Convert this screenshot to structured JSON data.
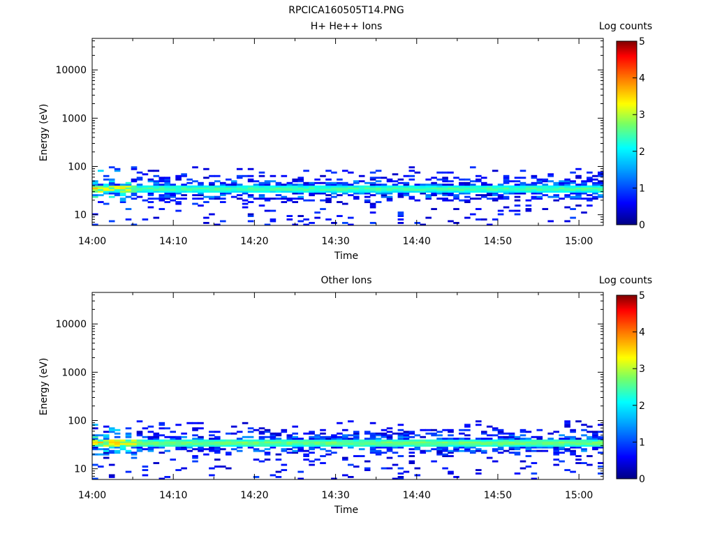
{
  "figure_title": "RPCICA160505T14.PNG",
  "chart_data": [
    {
      "type": "heatmap",
      "title": "H+ He++ Ions",
      "xlabel": "Time",
      "ylabel": "Energy (eV)",
      "x_range": [
        "14:00",
        "15:03"
      ],
      "x_ticks": [
        "14:00",
        "14:10",
        "14:20",
        "14:30",
        "14:40",
        "14:50",
        "15:00"
      ],
      "y_scale": "log",
      "ylim": [
        6,
        45000
      ],
      "y_ticks": [
        {
          "value": 10,
          "label": "10"
        },
        {
          "value": 100,
          "label": "100"
        },
        {
          "value": 1000,
          "label": "1000"
        },
        {
          "value": 10000,
          "label": "10000"
        }
      ],
      "colorbar": {
        "label": "Log counts",
        "range": [
          0,
          5
        ],
        "ticks": [
          "0",
          "1",
          "2",
          "3",
          "4",
          "5"
        ],
        "colormap": "rainbow"
      },
      "band": {
        "core_energy_eV": 33,
        "core_log_counts": 2.6,
        "core_width_bins": 2,
        "energy_extent_eV": [
          6,
          95
        ],
        "early_bins_more_intense": 8
      },
      "data_present_time_range": [
        "14:00",
        "15:03"
      ]
    },
    {
      "type": "heatmap",
      "title": "Other Ions",
      "xlabel": "Time",
      "ylabel": "Energy (eV)",
      "x_range": [
        "14:00",
        "15:03"
      ],
      "x_ticks": [
        "14:00",
        "14:10",
        "14:20",
        "14:30",
        "14:40",
        "14:50",
        "15:00"
      ],
      "y_scale": "log",
      "ylim": [
        6,
        45000
      ],
      "y_ticks": [
        {
          "value": 10,
          "label": "10"
        },
        {
          "value": 100,
          "label": "100"
        },
        {
          "value": 1000,
          "label": "1000"
        },
        {
          "value": 10000,
          "label": "10000"
        }
      ],
      "colorbar": {
        "label": "Log counts",
        "range": [
          0,
          5
        ],
        "ticks": [
          "0",
          "1",
          "2",
          "3",
          "4",
          "5"
        ],
        "colormap": "rainbow"
      },
      "band": {
        "core_energy_eV": 33,
        "core_log_counts": 2.8,
        "core_width_bins": 2,
        "energy_extent_eV": [
          6,
          95
        ],
        "early_bins_more_intense": 8
      },
      "data_present_time_range": [
        "14:00",
        "15:03"
      ]
    }
  ]
}
